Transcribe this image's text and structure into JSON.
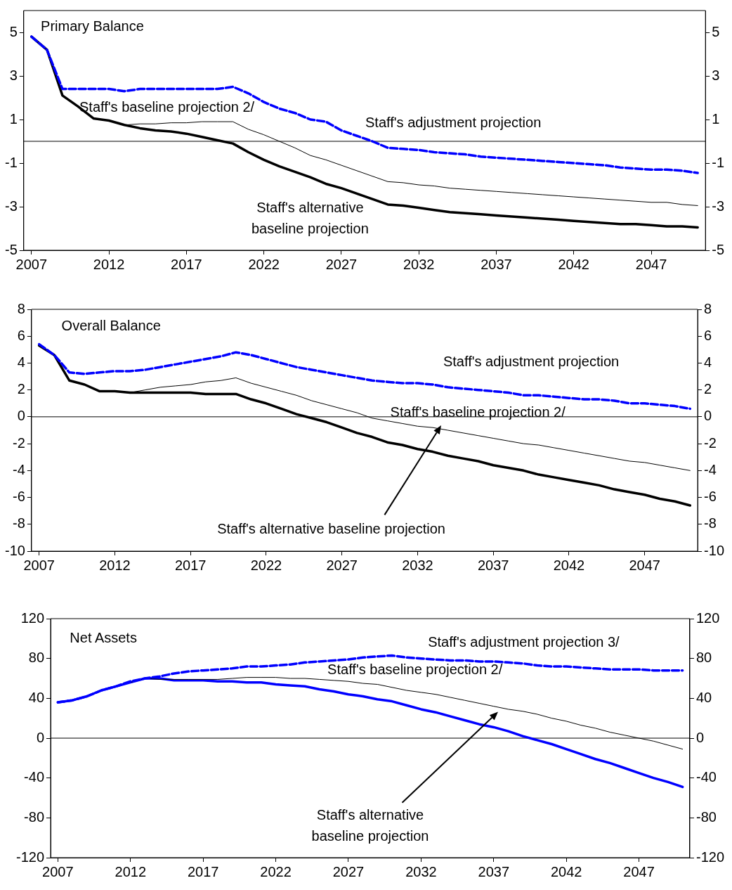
{
  "chart_data": [
    {
      "type": "line",
      "title": "Primary Balance",
      "categories": [
        "2007",
        null,
        null,
        null,
        null,
        "2012",
        null,
        null,
        null,
        null,
        "2017",
        null,
        null,
        null,
        null,
        "2022",
        null,
        null,
        null,
        null,
        "2027",
        null,
        null,
        null,
        null,
        "2032",
        null,
        null,
        null,
        null,
        "2037",
        null,
        null,
        null,
        null,
        "2042",
        null,
        null,
        null,
        null,
        "2047",
        null,
        null,
        null
      ],
      "series": [
        {
          "name": "Staff's adjustment projection",
          "color": "#0000ff",
          "line_style": "dashed",
          "values": [
            4.8,
            4.2,
            2.4,
            2.4,
            2.4,
            2.4,
            2.3,
            2.4,
            2.4,
            2.4,
            2.4,
            2.4,
            2.4,
            2.5,
            2.2,
            1.8,
            1.5,
            1.3,
            1.0,
            0.9,
            0.5,
            0.25,
            0.0,
            -0.3,
            -0.35,
            -0.4,
            -0.5,
            -0.55,
            -0.6,
            -0.7,
            -0.75,
            -0.8,
            -0.85,
            -0.9,
            -0.95,
            -1.0,
            -1.05,
            -1.1,
            -1.2,
            -1.25,
            -1.3,
            -1.3,
            -1.35,
            -1.45
          ]
        },
        {
          "name": "Staff's baseline projection 2/",
          "color": "#000000",
          "line_style": "solid",
          "values": [
            4.8,
            4.2,
            2.1,
            1.6,
            1.05,
            0.95,
            0.75,
            0.8,
            0.8,
            0.85,
            0.85,
            0.9,
            0.9,
            0.9,
            0.55,
            0.3,
            0.0,
            -0.3,
            -0.65,
            -0.85,
            -1.1,
            -1.35,
            -1.6,
            -1.85,
            -1.9,
            -2.0,
            -2.05,
            -2.15,
            -2.2,
            -2.25,
            -2.3,
            -2.35,
            -2.4,
            -2.45,
            -2.5,
            -2.55,
            -2.6,
            -2.65,
            -2.7,
            -2.75,
            -2.8,
            -2.8,
            -2.9,
            -2.95
          ]
        },
        {
          "name": "Staff's alternative baseline projection",
          "color": "#000000",
          "line_style": "solid",
          "values": [
            4.8,
            4.2,
            2.1,
            1.6,
            1.05,
            0.95,
            0.75,
            0.6,
            0.5,
            0.45,
            0.35,
            0.2,
            0.05,
            -0.1,
            -0.5,
            -0.85,
            -1.15,
            -1.4,
            -1.65,
            -1.95,
            -2.15,
            -2.4,
            -2.65,
            -2.9,
            -2.95,
            -3.05,
            -3.15,
            -3.25,
            -3.3,
            -3.35,
            -3.4,
            -3.45,
            -3.5,
            -3.55,
            -3.6,
            -3.65,
            -3.7,
            -3.75,
            -3.8,
            -3.8,
            -3.85,
            -3.9,
            -3.9,
            -3.95
          ]
        }
      ],
      "ylim": [
        -5,
        6
      ],
      "yticks": [
        -5,
        -3,
        -1,
        1,
        3,
        5
      ],
      "y2lim": [
        -5,
        6
      ],
      "y2ticks": [
        -5,
        -3,
        -1,
        1,
        3,
        5
      ],
      "ref_lines": [
        {
          "axis": "y",
          "value": 0
        }
      ],
      "grid": false,
      "legend": false,
      "marker": "none"
    },
    {
      "type": "line",
      "title": "Overall Balance",
      "categories": [
        "2007",
        null,
        null,
        null,
        null,
        "2012",
        null,
        null,
        null,
        null,
        "2017",
        null,
        null,
        null,
        null,
        "2022",
        null,
        null,
        null,
        null,
        "2027",
        null,
        null,
        null,
        null,
        "2032",
        null,
        null,
        null,
        null,
        "2037",
        null,
        null,
        null,
        null,
        "2042",
        null,
        null,
        null,
        null,
        "2047",
        null,
        null,
        null
      ],
      "series": [
        {
          "name": "Staff's adjustment projection",
          "color": "#0000ff",
          "line_style": "dashed",
          "values": [
            5.4,
            4.6,
            3.3,
            3.2,
            3.3,
            3.4,
            3.4,
            3.5,
            3.7,
            3.9,
            4.1,
            4.3,
            4.5,
            4.8,
            4.6,
            4.3,
            4.0,
            3.7,
            3.5,
            3.3,
            3.1,
            2.9,
            2.7,
            2.6,
            2.5,
            2.5,
            2.4,
            2.2,
            2.1,
            2.0,
            1.9,
            1.8,
            1.6,
            1.6,
            1.5,
            1.4,
            1.3,
            1.3,
            1.2,
            1.0,
            1.0,
            0.9,
            0.8,
            0.6
          ]
        },
        {
          "name": "Staff's baseline projection 2/",
          "color": "#000000",
          "line_style": "solid",
          "values": [
            5.3,
            4.6,
            2.7,
            2.4,
            1.9,
            1.9,
            1.8,
            2.0,
            2.2,
            2.3,
            2.4,
            2.6,
            2.7,
            2.9,
            2.5,
            2.2,
            1.9,
            1.6,
            1.2,
            0.9,
            0.6,
            0.3,
            -0.1,
            -0.3,
            -0.5,
            -0.7,
            -0.8,
            -1.0,
            -1.2,
            -1.4,
            -1.6,
            -1.8,
            -2.0,
            -2.1,
            -2.3,
            -2.5,
            -2.7,
            -2.9,
            -3.1,
            -3.3,
            -3.4,
            -3.6,
            -3.8,
            -4.0
          ]
        },
        {
          "name": "Staff's alternative baseline projection",
          "color": "#000000",
          "line_style": "solid",
          "values": [
            5.3,
            4.6,
            2.7,
            2.4,
            1.9,
            1.9,
            1.8,
            1.8,
            1.8,
            1.8,
            1.8,
            1.7,
            1.7,
            1.7,
            1.3,
            1.0,
            0.6,
            0.2,
            -0.1,
            -0.4,
            -0.8,
            -1.2,
            -1.5,
            -1.9,
            -2.1,
            -2.4,
            -2.6,
            -2.9,
            -3.1,
            -3.3,
            -3.6,
            -3.8,
            -4.0,
            -4.3,
            -4.5,
            -4.7,
            -4.9,
            -5.1,
            -5.4,
            -5.6,
            -5.8,
            -6.1,
            -6.3,
            -6.6
          ]
        }
      ],
      "ylim": [
        -10,
        8
      ],
      "yticks": [
        -10,
        -8,
        -6,
        -4,
        -2,
        0,
        2,
        4,
        6,
        8
      ],
      "y2lim": [
        -10,
        8
      ],
      "y2ticks": [
        -10,
        -8,
        -6,
        -4,
        -2,
        0,
        2,
        4,
        6,
        8
      ],
      "ref_lines": [
        {
          "axis": "y",
          "value": 0
        }
      ],
      "grid": false,
      "legend": false,
      "marker": "none"
    },
    {
      "type": "line",
      "title": "Net Assets",
      "categories": [
        "2007",
        null,
        null,
        null,
        null,
        "2012",
        null,
        null,
        null,
        null,
        "2017",
        null,
        null,
        null,
        null,
        "2022",
        null,
        null,
        null,
        null,
        "2027",
        null,
        null,
        null,
        null,
        "2032",
        null,
        null,
        null,
        null,
        "2037",
        null,
        null,
        null,
        null,
        "2042",
        null,
        null,
        null,
        null,
        "2047",
        null,
        null,
        null
      ],
      "series": [
        {
          "name": "Staff's adjustment projection 3/",
          "color": "#0000ff",
          "line_style": "dashed",
          "values": [
            36,
            38,
            42,
            48,
            52,
            57,
            60,
            62,
            65,
            67,
            68,
            69,
            70,
            72,
            72,
            73,
            74,
            76,
            77,
            78,
            79,
            81,
            82,
            83,
            81,
            80,
            79,
            78,
            78,
            77,
            77,
            76,
            75,
            73,
            72,
            72,
            71,
            70,
            69,
            69,
            69,
            68,
            68,
            68
          ]
        },
        {
          "name": "Staff's baseline projection 2/",
          "color": "#000000",
          "line_style": "solid",
          "values": [
            null,
            null,
            null,
            null,
            null,
            56,
            60,
            59,
            59,
            59,
            59,
            59,
            60,
            61,
            61,
            61,
            60,
            60,
            59,
            58,
            57,
            55,
            54,
            51,
            48,
            46,
            44,
            41,
            38,
            35,
            32,
            29,
            27,
            24,
            20,
            17,
            13,
            10,
            6,
            3,
            0,
            -3,
            -7,
            -11
          ]
        },
        {
          "name": "Staff's alternative baseline projection",
          "color": "#0000ff",
          "line_style": "solid",
          "values": [
            36,
            38,
            42,
            48,
            52,
            56,
            60,
            60,
            58,
            58,
            58,
            57,
            57,
            56,
            56,
            54,
            53,
            52,
            49,
            47,
            44,
            42,
            39,
            37,
            33,
            29,
            26,
            22,
            18,
            14,
            11,
            7,
            2,
            -2,
            -6,
            -11,
            -16,
            -21,
            -25,
            -30,
            -35,
            -40,
            -44,
            -49
          ]
        }
      ],
      "ylim": [
        -120,
        120
      ],
      "yticks": [
        -120,
        -80,
        -40,
        0,
        40,
        80,
        120
      ],
      "y2lim": [
        -120,
        120
      ],
      "y2ticks": [
        -120,
        -80,
        -40,
        0,
        40,
        80,
        120
      ],
      "ref_lines": [
        {
          "axis": "y",
          "value": 0
        }
      ],
      "grid": false,
      "legend": false,
      "marker": "none"
    }
  ]
}
